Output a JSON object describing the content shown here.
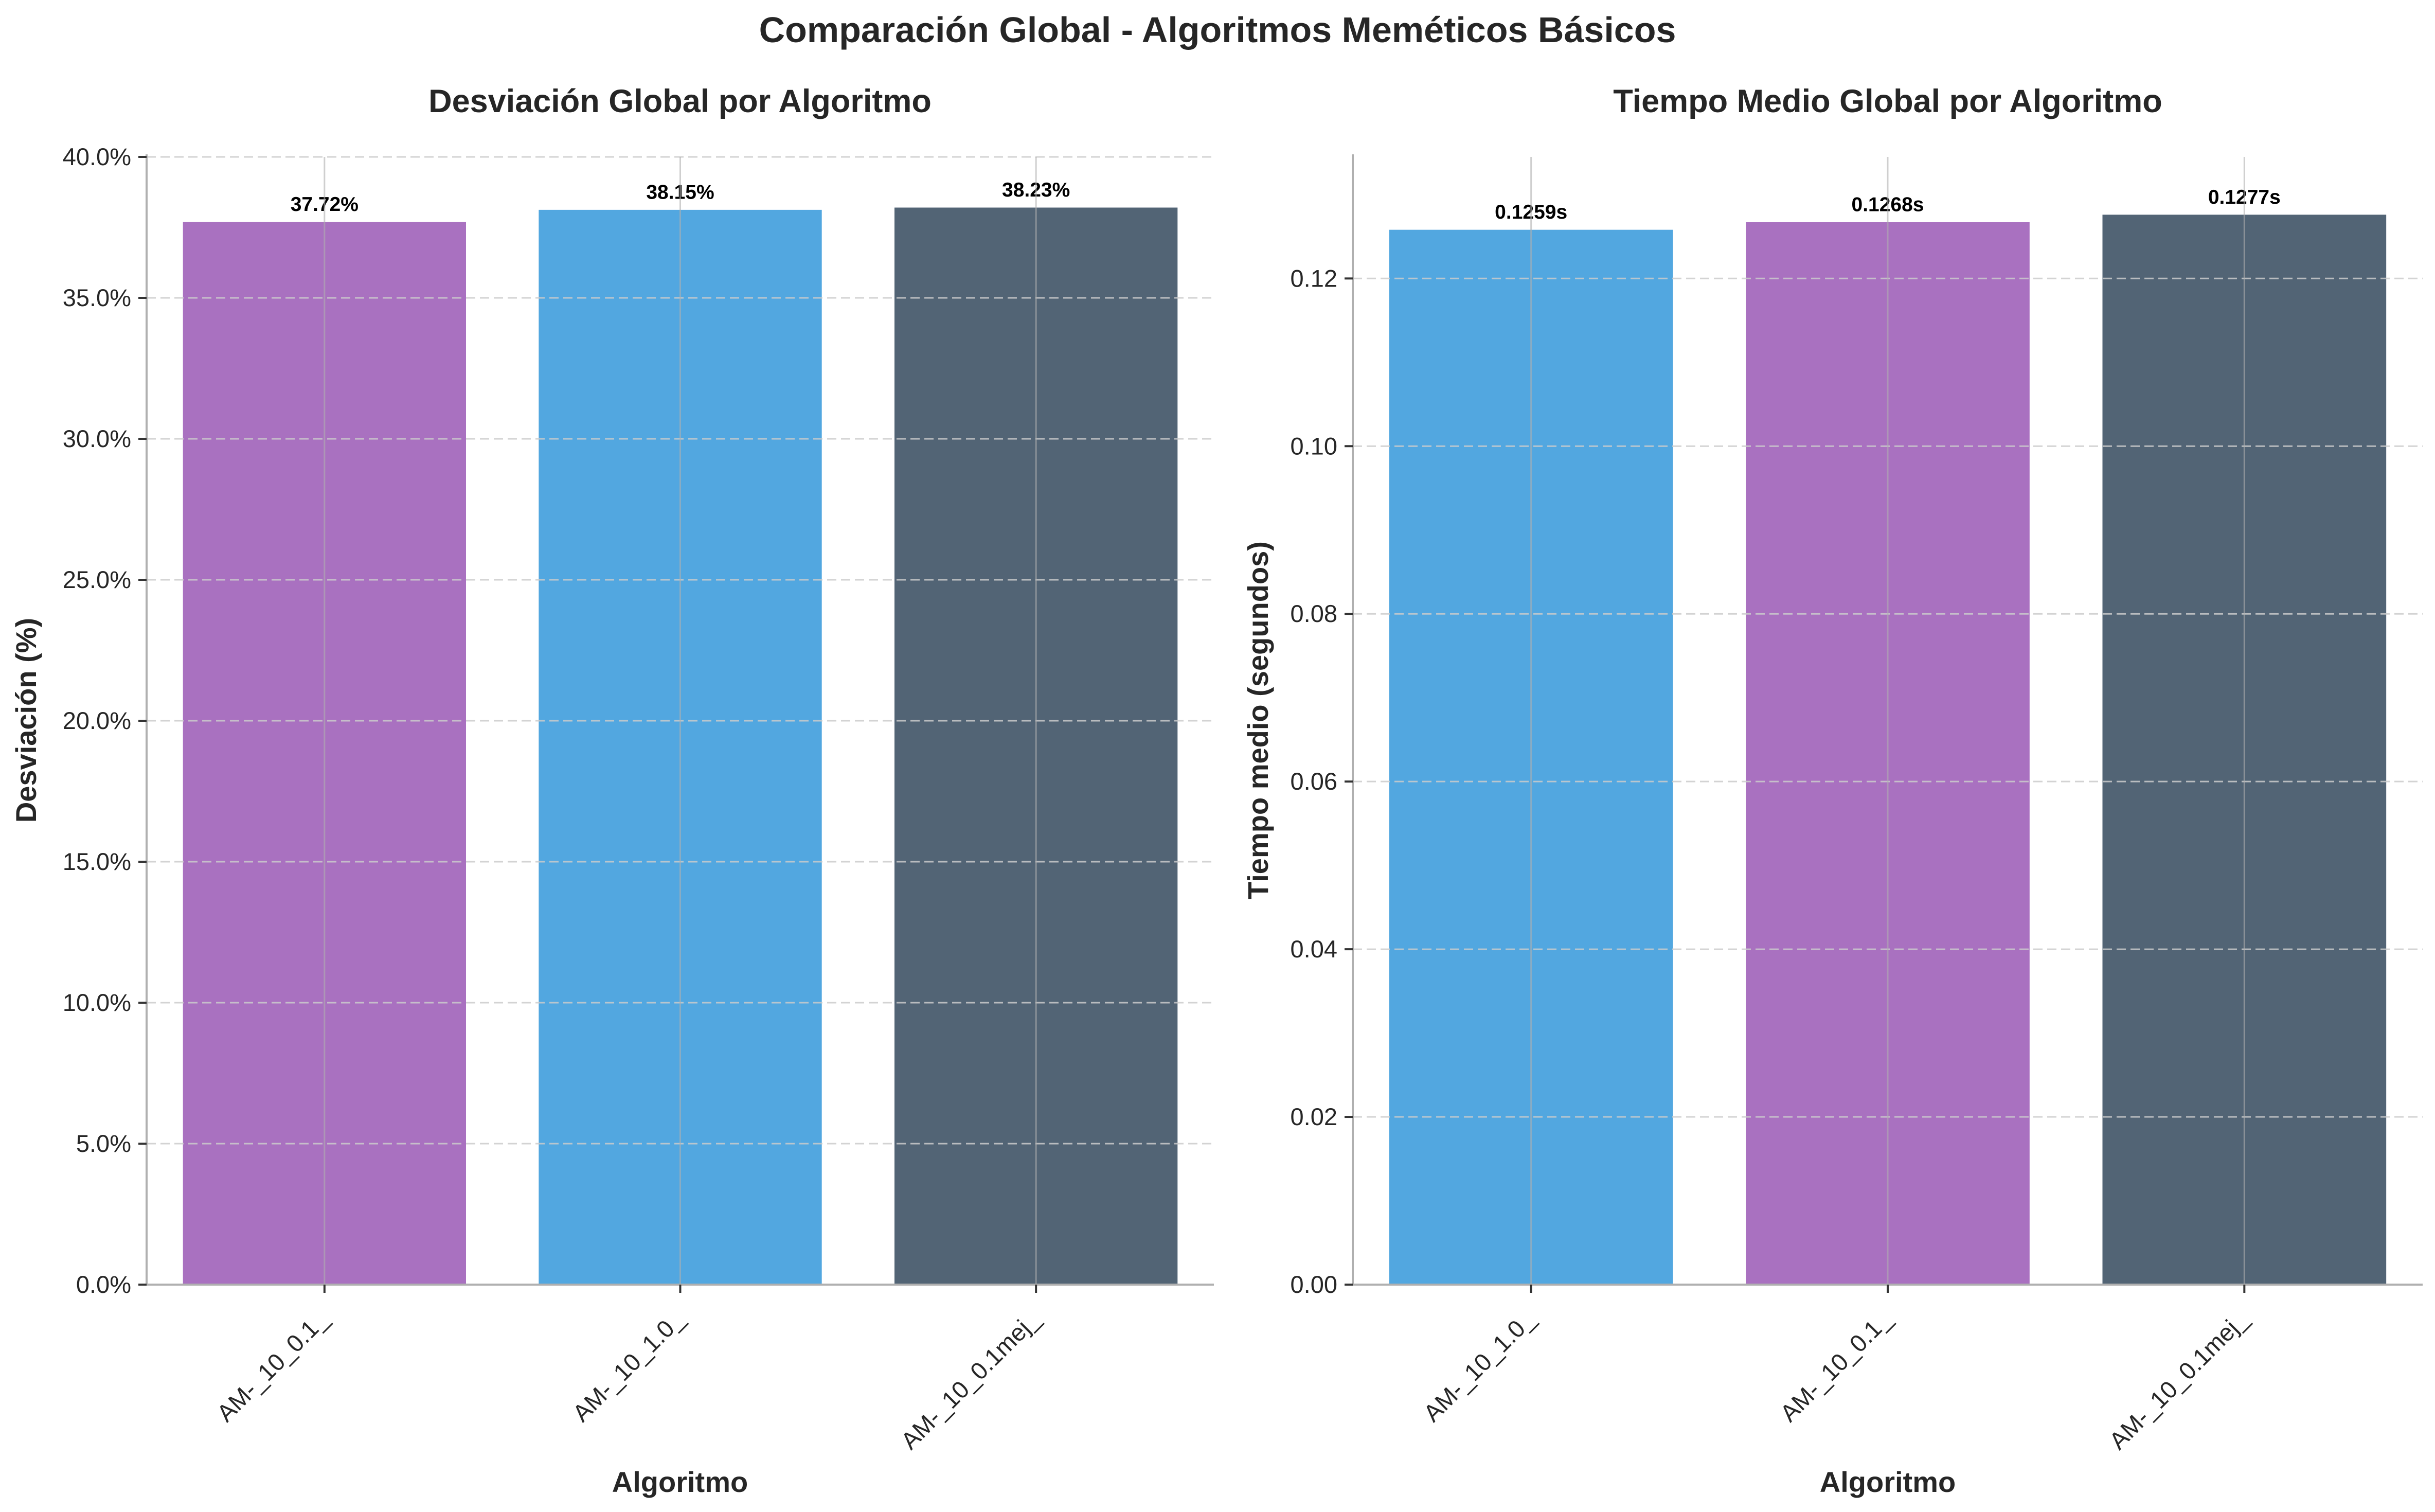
{
  "figure_title": "Comparación Global - Algoritmos Meméticos Básicos",
  "chart_data": [
    {
      "type": "bar",
      "title": "Desviación Global por Algoritmo",
      "xlabel": "Algoritmo",
      "ylabel": "Desviación (%)",
      "categories": [
        "AM-_10_0.1_",
        "AM-_10_1.0_",
        "AM-_10_0.1mej_"
      ],
      "values": [
        37.72,
        38.15,
        38.23
      ],
      "value_labels": [
        "37.72%",
        "38.15%",
        "38.23%"
      ],
      "colors": [
        "#9b59b6",
        "#3498db",
        "#34495e"
      ],
      "ylim": [
        0,
        40
      ],
      "yticks": [
        0,
        5,
        10,
        15,
        20,
        25,
        30,
        35,
        40
      ],
      "ytick_labels": [
        "0.0%",
        "5.0%",
        "10.0%",
        "15.0%",
        "20.0%",
        "25.0%",
        "30.0%",
        "35.0%",
        "40.0%"
      ],
      "grid": true
    },
    {
      "type": "bar",
      "title": "Tiempo Medio Global por Algoritmo",
      "xlabel": "Algoritmo",
      "ylabel": "Tiempo medio (segundos)",
      "categories": [
        "AM-_10_1.0_",
        "AM-_10_0.1_",
        "AM-_10_0.1mej_"
      ],
      "values": [
        0.1259,
        0.1268,
        0.1277
      ],
      "value_labels": [
        "0.1259s",
        "0.1268s",
        "0.1277s"
      ],
      "colors": [
        "#3498db",
        "#9b59b6",
        "#34495e"
      ],
      "ylim": [
        0,
        0.1345
      ],
      "yticks": [
        0,
        0.02,
        0.04,
        0.06,
        0.08,
        0.1,
        0.12
      ],
      "ytick_labels": [
        "0.00",
        "0.02",
        "0.04",
        "0.06",
        "0.08",
        "0.10",
        "0.12"
      ],
      "grid": true
    }
  ]
}
